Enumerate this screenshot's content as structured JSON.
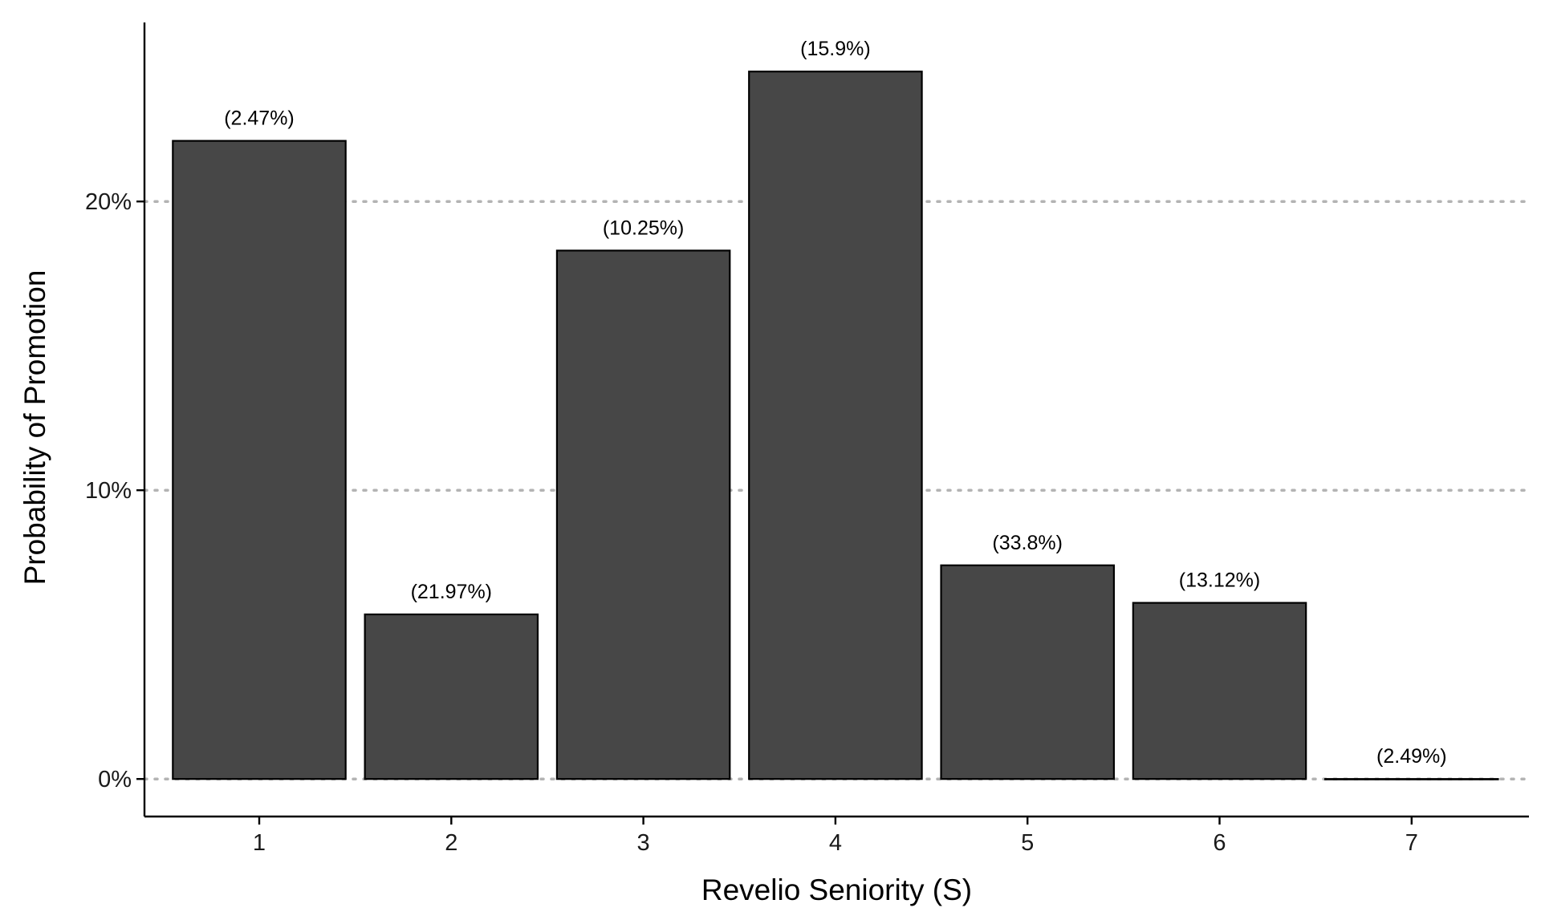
{
  "chart_data": {
    "type": "bar",
    "title": "",
    "xlabel": "Revelio Seniority (S)",
    "ylabel": "Probability of Promotion",
    "categories": [
      "1",
      "2",
      "3",
      "4",
      "5",
      "6",
      "7"
    ],
    "values": [
      22.1,
      5.7,
      18.3,
      24.5,
      7.4,
      6.1,
      0.0
    ],
    "bar_labels": [
      "(2.47%)",
      "(21.97%)",
      "(10.25%)",
      "(15.9%)",
      "(33.8%)",
      "(13.12%)",
      "(2.49%)"
    ],
    "ylim": [
      -1.3,
      26.2
    ],
    "yticks": [
      0,
      10,
      20
    ],
    "ytick_labels": [
      "0%",
      "10%",
      "20%"
    ],
    "grid": "horizontal dotted",
    "legend": "none",
    "colors": {
      "bar_fill": "#474747",
      "bar_stroke": "#000000",
      "grid": "#b3b3b3"
    }
  }
}
